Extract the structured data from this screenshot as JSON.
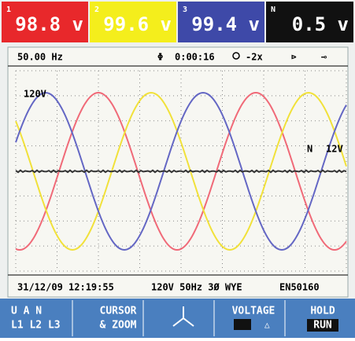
{
  "phases": [
    {
      "id": "1",
      "reading": "98.8 v"
    },
    {
      "id": "2",
      "reading": "99.6 v"
    },
    {
      "id": "3",
      "reading": "99.4 v"
    },
    {
      "id": "N",
      "reading": "0.5 v"
    }
  ],
  "header": {
    "frequency": "50.00 Hz",
    "elapsed": "0:00:16",
    "zoom": "-2x"
  },
  "plot": {
    "scale_label": "120V",
    "neutral_name": "N",
    "neutral_scale": "12V"
  },
  "status": {
    "datetime": "31/12/09 12:19:55",
    "config": "120V 50Hz 3Ø WYE",
    "standard": "EN50160"
  },
  "softkeys": [
    {
      "top": "U A N",
      "bottom": "L1 L2 L3"
    },
    {
      "top": "CURSOR",
      "bottom": "& ZOOM"
    },
    {
      "top": "VOLTAGE"
    },
    {
      "top": "HOLD",
      "bottom": "RUN"
    }
  ]
}
